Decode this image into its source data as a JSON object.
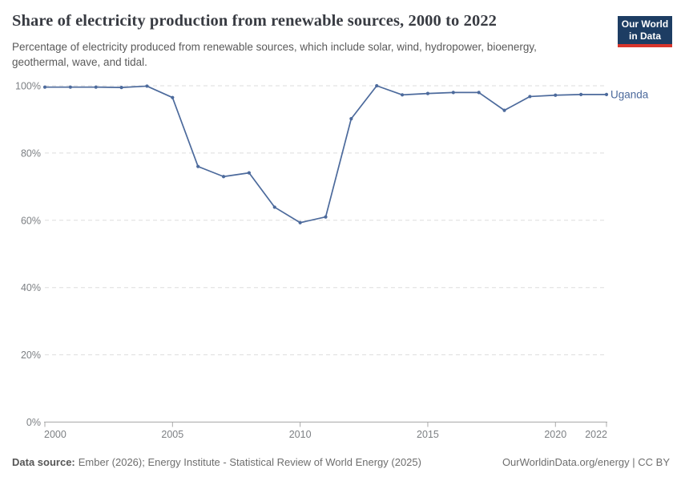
{
  "header": {
    "title": "Share of electricity production from renewable sources, 2000 to 2022",
    "subtitle": "Percentage of electricity produced from renewable sources, which include solar, wind, hydropower, bioenergy, geothermal, wave, and tidal.",
    "logo": {
      "line1": "Our World",
      "line2": "in Data",
      "bg_color": "#1d3d63",
      "stripe_color": "#d8352c"
    }
  },
  "chart_data": {
    "type": "line",
    "title": "Share of electricity production from renewable sources, 2000 to 2022",
    "xlabel": "",
    "ylabel": "",
    "xlim": [
      2000,
      2022
    ],
    "ylim": [
      0,
      100
    ],
    "xticks": [
      2000,
      2005,
      2010,
      2015,
      2020,
      2022
    ],
    "yticks": [
      0,
      20,
      40,
      60,
      80,
      100
    ],
    "ytick_suffix": "%",
    "grid": "horizontal-dashed",
    "grid_color": "#dddddd",
    "axis_color": "#a8a8a8",
    "tick_label_color": "#7d8084",
    "legend_position": "end-of-line-label",
    "series": [
      {
        "name": "Uganda",
        "color": "#4c6a9c",
        "x": [
          2000,
          2001,
          2002,
          2003,
          2004,
          2005,
          2006,
          2007,
          2008,
          2009,
          2010,
          2011,
          2012,
          2013,
          2014,
          2015,
          2016,
          2017,
          2018,
          2019,
          2020,
          2021,
          2022
        ],
        "values": [
          99.6,
          99.6,
          99.6,
          99.5,
          99.9,
          96.5,
          76.0,
          73.0,
          74.1,
          63.9,
          59.3,
          61.0,
          90.2,
          100,
          97.3,
          97.7,
          98.0,
          98.0,
          92.7,
          96.8,
          97.2,
          97.4,
          97.4
        ]
      }
    ]
  },
  "footer": {
    "source_label": "Data source:",
    "source_text": "Ember (2026); Energy Institute - Statistical Review of World Energy (2025)",
    "credit": "OurWorldinData.org/energy | CC BY"
  }
}
